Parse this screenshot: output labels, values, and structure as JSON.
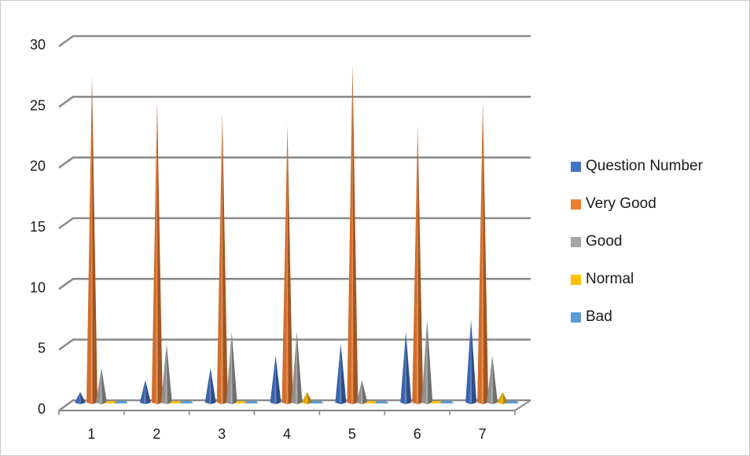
{
  "chart_data": {
    "type": "bar",
    "shape": "3d-cone",
    "title": "",
    "xlabel": "",
    "ylabel": "",
    "categories": [
      "1",
      "2",
      "3",
      "4",
      "5",
      "6",
      "7"
    ],
    "ylim": [
      0,
      30
    ],
    "yticks": [
      "0",
      "5",
      "10",
      "15",
      "20",
      "25",
      "30"
    ],
    "grid": true,
    "legend": "right",
    "series": [
      {
        "name": "Question Number",
        "color": "#4472c4",
        "values": [
          1,
          2,
          3,
          4,
          5,
          6,
          7
        ]
      },
      {
        "name": "Very Good",
        "color": "#ed7d31",
        "values": [
          27,
          25,
          24,
          23,
          28,
          23,
          25
        ]
      },
      {
        "name": "Good",
        "color": "#a5a5a5",
        "values": [
          3,
          5,
          6,
          6,
          2,
          7,
          4
        ]
      },
      {
        "name": "Normal",
        "color": "#ffc000",
        "values": [
          0,
          0,
          0,
          1,
          0,
          0,
          1
        ]
      },
      {
        "name": "Bad",
        "color": "#5b9bd5",
        "values": [
          0,
          0,
          0,
          0,
          0,
          0,
          0
        ]
      }
    ]
  }
}
